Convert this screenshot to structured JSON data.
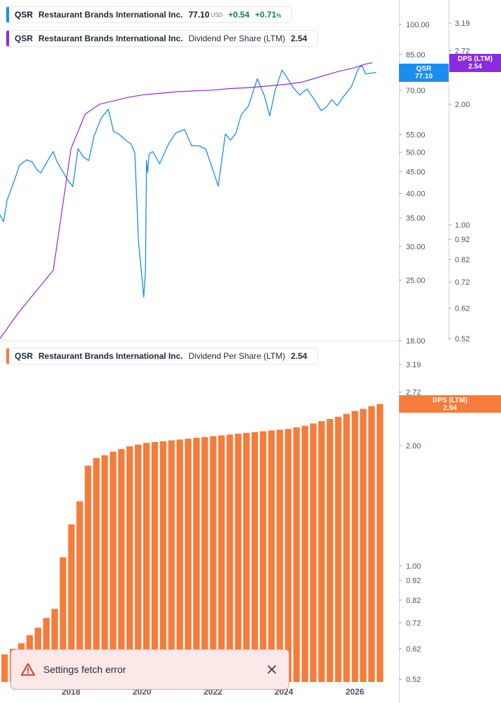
{
  "legends": {
    "price": {
      "symbol": "QSR",
      "company": "Restaurant Brands International Inc.",
      "last": "77.10",
      "currency": "USD",
      "change": "+0.54",
      "change_pct": "+0.71",
      "pct_sign": "%"
    },
    "dps_top": {
      "symbol": "QSR",
      "company": "Restaurant Brands International Inc.",
      "metric": "Dividend Per Share (LTM)",
      "value": "2.54"
    },
    "dps_bottom": {
      "symbol": "QSR",
      "company": "Restaurant Brands International Inc.",
      "metric": "Dividend Per Share (LTM)",
      "value": "2.54"
    }
  },
  "tags": {
    "qsr_symbol": "QSR",
    "qsr_value": "77.10",
    "dps_top_label": "DPS (LTM)",
    "dps_top_value": "2.54",
    "dps_bottom_label": "DPS (LTM)",
    "dps_bottom_value": "2.54"
  },
  "toast": {
    "message": "Settings fetch error"
  },
  "colors": {
    "price_line": "#1a8df0",
    "dps_line": "#8a2be2",
    "dps_bars": "#f57c3a",
    "axis_text": "#4b5563",
    "toast_bg": "#fde8e8",
    "error_icon": "#d92d20"
  },
  "chart_data": [
    {
      "type": "line",
      "scale": "log",
      "ylim": [
        18,
        118
      ],
      "xlim": [
        2016.0,
        2026.85
      ],
      "right_axis_ticks": [
        "100.00",
        "85.00",
        "70.00",
        "55.00",
        "50.00",
        "45.00",
        "40.00",
        "35.00",
        "30.00",
        "25.00",
        "18.00"
      ],
      "secondary_axis_ticks": [
        "3.19",
        "2.72",
        "2.00",
        "1.00",
        "0.92",
        "0.82",
        "0.72",
        "0.62",
        "0.52"
      ],
      "series": [
        {
          "name": "QSR",
          "axis": "price",
          "x": [
            2016.0,
            2016.1,
            2016.2,
            2016.4,
            2016.55,
            2016.75,
            2016.9,
            2017.05,
            2017.15,
            2017.3,
            2017.5,
            2017.6,
            2017.75,
            2017.9,
            2018.05,
            2018.2,
            2018.35,
            2018.5,
            2018.65,
            2018.85,
            2019.05,
            2019.2,
            2019.35,
            2019.55,
            2019.7,
            2019.8,
            2019.9,
            2020.05,
            2020.1,
            2020.13,
            2020.16,
            2020.2,
            2020.3,
            2020.5,
            2020.75,
            2020.95,
            2021.2,
            2021.4,
            2021.6,
            2021.8,
            2022.0,
            2022.15,
            2022.35,
            2022.5,
            2022.65,
            2022.8,
            2023.0,
            2023.25,
            2023.45,
            2023.6,
            2023.75,
            2023.95,
            2024.1,
            2024.25,
            2024.45,
            2024.65,
            2024.85,
            2025.05,
            2025.2,
            2025.35,
            2025.5,
            2025.7,
            2025.9,
            2026.1,
            2026.2,
            2026.3,
            2026.45,
            2026.6
          ],
          "y": [
            35.6,
            34.3,
            38.6,
            42.8,
            46.6,
            48.0,
            47.5,
            45.4,
            44.7,
            47.1,
            50.2,
            47.6,
            45.3,
            43.1,
            41.5,
            51.0,
            48.7,
            47.8,
            54.6,
            60.1,
            63.2,
            56.0,
            55.2,
            53.3,
            52.2,
            49.8,
            31.0,
            22.8,
            26.3,
            47.8,
            44.8,
            49.5,
            50.2,
            47.0,
            52.3,
            55.5,
            56.6,
            51.8,
            51.8,
            50.9,
            45.4,
            41.6,
            55.2,
            53.4,
            55.5,
            61.3,
            64.2,
            74.5,
            68.0,
            60.9,
            69.8,
            78.1,
            74.7,
            71.2,
            68.2,
            70.5,
            66.7,
            62.7,
            63.9,
            66.5,
            64.4,
            68.0,
            71.3,
            78.8,
            80.0,
            76.5,
            76.8,
            77.1
          ]
        },
        {
          "name": "Dividend Per Share (LTM)",
          "axis": "dps",
          "x": [
            2016.0,
            2016.5,
            2017.0,
            2017.5,
            2018.0,
            2018.4,
            2018.8,
            2019.2,
            2019.6,
            2020.0,
            2020.5,
            2021.0,
            2021.5,
            2022.0,
            2022.5,
            2023.0,
            2023.5,
            2024.0,
            2024.5,
            2025.0,
            2025.5,
            2026.0,
            2026.3,
            2026.5
          ],
          "y": [
            0.52,
            0.6,
            0.68,
            0.77,
            1.55,
            1.89,
            2.0,
            2.04,
            2.08,
            2.11,
            2.13,
            2.15,
            2.16,
            2.17,
            2.19,
            2.2,
            2.22,
            2.24,
            2.27,
            2.34,
            2.41,
            2.47,
            2.52,
            2.54
          ]
        }
      ]
    },
    {
      "type": "bar",
      "scale": "log",
      "name": "Dividend Per Share (LTM)",
      "ylim": [
        0.52,
        3.19
      ],
      "right_axis_ticks": [
        "3.19",
        "2.72",
        "2.00",
        "1.00",
        "0.92",
        "0.82",
        "0.72",
        "0.62",
        "0.52"
      ],
      "x_ticks": [
        "2018",
        "2020",
        "2022",
        "2024",
        "2026"
      ],
      "values": [
        0.6,
        0.62,
        0.64,
        0.67,
        0.7,
        0.74,
        0.78,
        1.05,
        1.27,
        1.45,
        1.78,
        1.86,
        1.89,
        1.93,
        1.96,
        1.99,
        2.01,
        2.03,
        2.04,
        2.05,
        2.06,
        2.07,
        2.08,
        2.09,
        2.1,
        2.11,
        2.12,
        2.13,
        2.14,
        2.15,
        2.16,
        2.17,
        2.18,
        2.19,
        2.2,
        2.22,
        2.24,
        2.27,
        2.3,
        2.33,
        2.36,
        2.4,
        2.44,
        2.47,
        2.51,
        2.54
      ]
    }
  ]
}
